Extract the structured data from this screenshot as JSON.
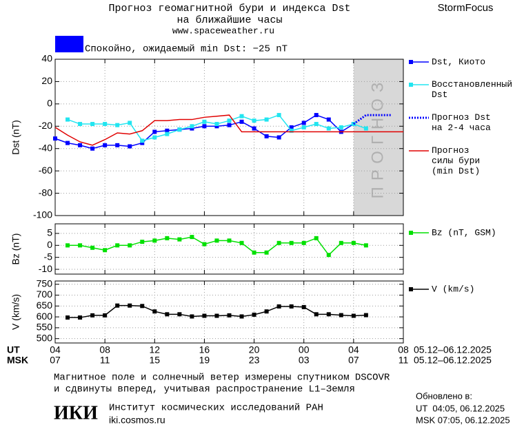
{
  "header": {
    "title": "Прогноз геомагнитной бури и индекса Dst",
    "title_line2": "на ближайшие часы",
    "url": "www.spaceweather.ru",
    "brand": "StormFocus",
    "status": "Спокойно, ожидаемый min Dst: −25 nT",
    "status_color": "#0000ff"
  },
  "chart_data": [
    {
      "type": "line",
      "ylabel": "Dst (nT)",
      "xlim": [
        0,
        28
      ],
      "ylim": [
        -100,
        40
      ],
      "yticks": [
        40,
        20,
        0,
        -20,
        -40,
        -60,
        -80,
        -100
      ],
      "grid": true,
      "forecast_region": {
        "x": [
          24,
          28
        ],
        "label": "ПРОГНОЗ"
      },
      "series": [
        {
          "name": "Dst, Киото",
          "color": "#0000ff",
          "markers": true,
          "style": "solid",
          "x": [
            0,
            1,
            2,
            3,
            4,
            5,
            6,
            7,
            8,
            9,
            10,
            11,
            12,
            13,
            14,
            15,
            16,
            17,
            18,
            19,
            20,
            21,
            22,
            23,
            24
          ],
          "values": [
            -31,
            -35,
            -37,
            -40,
            -37,
            -37,
            -38,
            -35,
            -25,
            -24,
            -23,
            -22,
            -20,
            -20,
            -19,
            -16,
            -22,
            -29,
            -30,
            -21,
            -17,
            -10,
            -14,
            -25,
            -18
          ]
        },
        {
          "name": "Восстановленный\nDst",
          "color": "#22e5f0",
          "markers": true,
          "style": "solid",
          "x": [
            1,
            2,
            3,
            4,
            5,
            6,
            7,
            8,
            9,
            10,
            11,
            12,
            13,
            14,
            15,
            16,
            17,
            18,
            19,
            20,
            21,
            22,
            23,
            24,
            25
          ],
          "values": [
            -14,
            -18,
            -18,
            -18,
            -19,
            -17,
            -33,
            -30,
            -27,
            -23,
            -20,
            -16,
            -18,
            -15,
            -11,
            -15,
            -14,
            -10,
            -24,
            -21,
            -18,
            -22,
            -21,
            -18,
            -22
          ]
        },
        {
          "name": "Прогноз Dst\nна 2-4 часа",
          "color": "#0000ff",
          "markers": false,
          "style": "dotted",
          "x": [
            24,
            25,
            27
          ],
          "values": [
            -18,
            -10,
            -10
          ]
        },
        {
          "name": "Прогноз\nсилы бури\n(min Dst)",
          "color": "#e00000",
          "markers": false,
          "style": "solid",
          "x": [
            0,
            1,
            2,
            3,
            4,
            5,
            6,
            7,
            8,
            9,
            10,
            11,
            12,
            13,
            14,
            15,
            28
          ],
          "values": [
            -21,
            -28,
            -34,
            -37,
            -32,
            -26,
            -27,
            -24,
            -15,
            -15,
            -14,
            -14,
            -12,
            -11,
            -10,
            -25,
            -25
          ]
        }
      ]
    },
    {
      "type": "line",
      "ylabel": "Bz (nT)",
      "xlim": [
        0,
        28
      ],
      "ylim": [
        -12,
        9
      ],
      "yticks": [
        5,
        0,
        -5,
        -10
      ],
      "grid": true,
      "series": [
        {
          "name": "Bz (nT, GSM)",
          "color": "#00e000",
          "markers": true,
          "style": "solid",
          "x": [
            1,
            2,
            3,
            4,
            5,
            6,
            7,
            8,
            9,
            10,
            11,
            12,
            13,
            14,
            15,
            16,
            17,
            18,
            19,
            20,
            21,
            22,
            23,
            24,
            25
          ],
          "values": [
            0,
            0,
            -1,
            -2,
            0,
            0,
            1.5,
            2,
            3,
            2.5,
            3.5,
            0.5,
            2,
            2,
            1,
            -3,
            -3,
            1,
            1,
            1,
            3,
            -4,
            1,
            1,
            0
          ]
        }
      ]
    },
    {
      "type": "line",
      "ylabel": "V (km/s)",
      "xlim": [
        0,
        28
      ],
      "ylim": [
        480,
        765
      ],
      "yticks": [
        750,
        700,
        650,
        600,
        550,
        500
      ],
      "grid": true,
      "xticks": [
        {
          "value": 0,
          "label": "04"
        },
        {
          "value": 4,
          "label": "08"
        },
        {
          "value": 8,
          "label": "12"
        },
        {
          "value": 12,
          "label": "16"
        },
        {
          "value": 16,
          "label": "20"
        },
        {
          "value": 20,
          "label": "00"
        },
        {
          "value": 24,
          "label": "04"
        },
        {
          "value": 28,
          "label": "08"
        }
      ],
      "msk_tick_labels": [
        "07",
        "11",
        "15",
        "19",
        "23",
        "03",
        "07",
        "11"
      ],
      "ut_label": "UT",
      "msk_label": "MSK",
      "date_range_ut": "05.12–06.12.2025",
      "date_range_msk": "05.12–06.12.2025",
      "series": [
        {
          "name": "V (km/s)",
          "color": "#000000",
          "markers": true,
          "style": "solid",
          "x": [
            1,
            2,
            3,
            4,
            5,
            6,
            7,
            8,
            9,
            10,
            11,
            12,
            13,
            14,
            15,
            16,
            17,
            18,
            19,
            20,
            21,
            22,
            23,
            24,
            25
          ],
          "values": [
            597,
            597,
            607,
            607,
            652,
            652,
            650,
            625,
            612,
            612,
            602,
            605,
            605,
            607,
            602,
            610,
            625,
            648,
            648,
            645,
            612,
            612,
            608,
            605,
            608
          ]
        }
      ]
    }
  ],
  "footer": {
    "note_line1": "Магнитное поле и солнечный ветер измерены спутником DSCOVR",
    "note_line2": "и сдвинуты вперед, учитывая распространение L1–Земля",
    "logo": "ИКИ",
    "institute": "Институт космических исследований РАН",
    "site": "iki.cosmos.ru",
    "updated": "Обновлено в:",
    "updated_ut": "UT  04:05, 06.12.2025",
    "updated_msk": "MSK 07:05, 06.12.2025"
  }
}
